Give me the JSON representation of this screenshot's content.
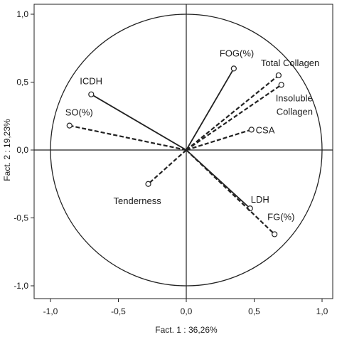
{
  "chart_data": {
    "type": "scatter",
    "title": "",
    "xlabel": "Fact. 1  : 36,26%",
    "ylabel": "Fact. 2 : 19,23%",
    "xlim": [
      -1.1,
      1.0
    ],
    "ylim": [
      -1.1,
      1.0
    ],
    "x_ticks": [
      "-1,0",
      "-0,5",
      "0,0",
      "0,5",
      "1,0"
    ],
    "y_ticks": [
      "1,0",
      "0,5",
      "0,0",
      "-0,5",
      "-1,0"
    ],
    "x_tick_values": [
      -1.0,
      -0.5,
      0.0,
      0.5,
      1.0
    ],
    "y_tick_values": [
      1.0,
      0.5,
      0.0,
      -0.5,
      -1.0
    ],
    "unit_circle": true,
    "grid": false,
    "variables": [
      {
        "name": "FOG(%)",
        "x": 0.35,
        "y": 0.6,
        "line": "solid"
      },
      {
        "name": "Total Collagen",
        "x": 0.68,
        "y": 0.55,
        "line": "dashed"
      },
      {
        "name": "Insoluble",
        "name2": "Collagen",
        "x": 0.7,
        "y": 0.48,
        "line": "dashed"
      },
      {
        "name": "ICDH",
        "x": -0.7,
        "y": 0.41,
        "line": "solid"
      },
      {
        "name": "SO(%)",
        "x": -0.86,
        "y": 0.18,
        "line": "dashed"
      },
      {
        "name": "CSA",
        "x": 0.48,
        "y": 0.15,
        "line": "dashed"
      },
      {
        "name": "Tenderness",
        "x": -0.28,
        "y": -0.25,
        "line": "dashed"
      },
      {
        "name": "LDH",
        "x": 0.47,
        "y": -0.43,
        "line": "solid"
      },
      {
        "name": "FG(%)",
        "x": 0.65,
        "y": -0.62,
        "line": "dashed"
      }
    ]
  }
}
